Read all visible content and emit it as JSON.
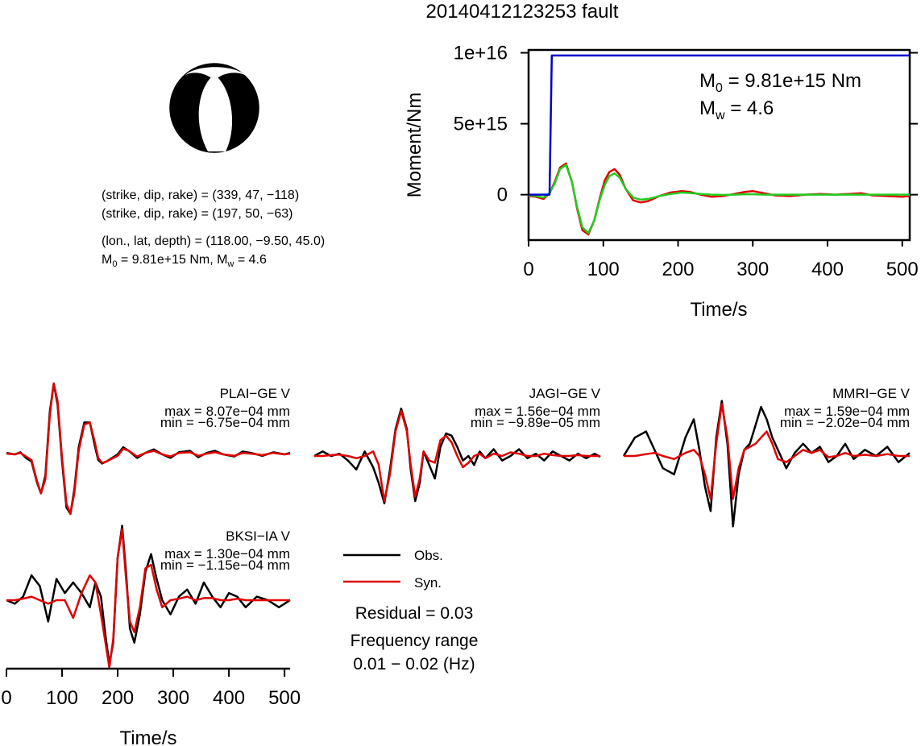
{
  "page_title": "20140412123253 fault",
  "colors": {
    "moment_rate_observed": "#0000cc",
    "moment_rate_red": "#e00000",
    "moment_rate_green": "#22cc22",
    "obs": "#000000",
    "syn": "#e00000",
    "beachball_fill": "#000000"
  },
  "mechanism": {
    "plane1": "(strike, dip, rake) = (339, 47, −118)",
    "plane2": "(strike, dip, rake) = (197, 50, −63)",
    "location": "(lon., lat, depth) = (118.00, −9.50, 45.0)",
    "m0_prefix": "M",
    "m0_sub": "0",
    "m0_value": " = 9.81e+15 Nm, M",
    "mw_sub": "w",
    "mw_value": " = 4.6"
  },
  "legend": {
    "obs_label": "Obs.",
    "syn_label": "Syn.",
    "residual": "Residual = 0.03",
    "freq_label": "Frequency range",
    "freq_value": "0.01 − 0.02 (Hz)"
  },
  "moment_chart": {
    "ylabel": "Moment/Nm",
    "xlabel": "Time/s",
    "m0_annot_prefix": "M",
    "m0_annot_sub": "0",
    "m0_annot_value": " = 9.81e+15 Nm",
    "mw_annot_prefix": "M",
    "mw_annot_sub": "w",
    "mw_annot_value": " = 4.6",
    "ytick_labels": [
      "1e+16",
      "5e+15",
      "0"
    ],
    "xtick_labels": [
      "0",
      "100",
      "200",
      "300",
      "400",
      "500"
    ]
  },
  "waveform_axis": {
    "xlabel": "Time/s",
    "xtick_labels": [
      "0",
      "100",
      "200",
      "300",
      "400",
      "500"
    ]
  },
  "stations": [
    {
      "name": "PLAI−GE V",
      "max": "max = 8.07e−04 mm",
      "min": "min = −6.75e−04 mm"
    },
    {
      "name": "JAGI−GE V",
      "max": "max = 1.56e−04 mm",
      "min": "min = −9.89e−05 mm"
    },
    {
      "name": "MMRI−GE V",
      "max": "max = 1.59e−04 mm",
      "min": "min = −2.02e−04 mm"
    },
    {
      "name": "BKSI−IA V",
      "max": "max = 1.30e−04 mm",
      "min": "min = −1.15e−04 mm"
    }
  ],
  "chart_data": [
    {
      "type": "line",
      "xlabel": "Time/s",
      "ylabel": "Moment/Nm",
      "xlim": [
        0,
        510
      ],
      "ylim": [
        -3200000000000000.0,
        1.02e+16
      ],
      "yticks": [
        0,
        5000000000000000.0,
        1e+16
      ],
      "xticks": [
        0,
        100,
        200,
        300,
        400,
        500
      ],
      "series": [
        {
          "color": "blue",
          "x": [
            0,
            28,
            31,
            33,
            510
          ],
          "y": [
            0,
            0,
            9810000000000000.0,
            9810000000000000.0,
            9810000000000000.0
          ]
        },
        {
          "color": "red",
          "x": [
            0,
            10,
            20,
            28,
            35,
            42,
            50,
            58,
            65,
            72,
            80,
            88,
            95,
            102,
            108,
            115,
            122,
            130,
            140,
            150,
            160,
            175,
            190,
            205,
            215,
            230,
            245,
            260,
            275,
            290,
            300,
            315,
            330,
            350,
            370,
            390,
            410,
            430,
            445,
            460,
            480,
            500,
            510
          ],
          "y": [
            -100000000000000.0,
            -150000000000000.0,
            -300000000000000.0,
            100000000000000.0,
            900000000000000.0,
            1900000000000000.0,
            2200000000000000.0,
            900000000000000.0,
            -1000000000000000.0,
            -2500000000000000.0,
            -2800000000000000.0,
            -1800000000000000.0,
            -300000000000000.0,
            1000000000000000.0,
            1600000000000000.0,
            1800000000000000.0,
            1400000000000000.0,
            400000000000000.0,
            -400000000000000.0,
            -550000000000000.0,
            -450000000000000.0,
            -100000000000000.0,
            150000000000000.0,
            250000000000000.0,
            200000000000000.0,
            0.0,
            -150000000000000.0,
            -100000000000000.0,
            50000000000000.0,
            200000000000000.0,
            250000000000000.0,
            100000000000000.0,
            -50000000000000.0,
            -100000000000000.0,
            0.0,
            50000000000000.0,
            0.0,
            50000000000000.0,
            100000000000000.0,
            -50000000000000.0,
            -100000000000000.0,
            -150000000000000.0,
            -100000000000000.0
          ]
        },
        {
          "color": "green",
          "x": [
            0,
            10,
            20,
            28,
            35,
            42,
            50,
            58,
            65,
            72,
            80,
            88,
            95,
            102,
            108,
            115,
            122,
            130,
            140,
            150,
            160,
            175,
            190,
            205,
            215,
            230,
            245,
            260,
            275,
            290,
            300,
            315,
            330,
            350,
            370,
            390,
            410,
            430,
            445,
            460,
            480,
            500,
            510
          ],
          "y": [
            -50000000000000.0,
            -100000000000000.0,
            -200000000000000.0,
            100000000000000.0,
            800000000000000.0,
            1800000000000000.0,
            2100000000000000.0,
            900000000000000.0,
            -900000000000000.0,
            -2300000000000000.0,
            -2700000000000000.0,
            -1800000000000000.0,
            -400000000000000.0,
            700000000000000.0,
            1300000000000000.0,
            1500000000000000.0,
            1200000000000000.0,
            400000000000000.0,
            -200000000000000.0,
            -350000000000000.0,
            -300000000000000.0,
            -100000000000000.0,
            50000000000000.0,
            150000000000000.0,
            120000000000000.0,
            50000000000000.0,
            0.0,
            -20000000000000.0,
            0.0,
            30000000000000.0,
            30000000000000.0,
            0.0,
            0.0,
            0.0,
            0.0,
            0.0,
            0.0,
            0.0,
            0.0,
            0.0,
            0.0,
            0.0,
            0.0
          ]
        }
      ]
    },
    {
      "type": "line",
      "title": "PLAI−GE V",
      "xlim": [
        0,
        510
      ],
      "ylim": [
        -1,
        1
      ],
      "series": [
        {
          "name": "Obs.",
          "color": "black",
          "x": [
            0,
            15,
            25,
            35,
            45,
            55,
            62,
            70,
            78,
            85,
            92,
            100,
            108,
            115,
            122,
            130,
            140,
            150,
            158,
            165,
            172,
            180,
            190,
            200,
            210,
            220,
            235,
            250,
            265,
            280,
            295,
            310,
            330,
            345,
            360,
            375,
            390,
            410,
            425,
            440,
            460,
            480,
            500,
            510
          ],
          "y": [
            0.02,
            0.0,
            0.03,
            -0.05,
            -0.1,
            -0.4,
            -0.55,
            -0.3,
            0.6,
            1.0,
            0.7,
            -0.1,
            -0.75,
            -0.84,
            -0.5,
            0.1,
            0.45,
            0.45,
            0.15,
            -0.08,
            -0.13,
            -0.1,
            -0.05,
            0.0,
            0.1,
            0.05,
            -0.05,
            0.02,
            0.07,
            0.0,
            -0.05,
            0.03,
            0.05,
            -0.04,
            0.02,
            0.05,
            0.0,
            -0.03,
            0.04,
            0.02,
            -0.02,
            0.03,
            0.0,
            0.02
          ]
        },
        {
          "name": "Syn.",
          "color": "red",
          "x": [
            0,
            15,
            25,
            35,
            45,
            55,
            62,
            70,
            78,
            85,
            92,
            100,
            108,
            115,
            122,
            130,
            140,
            150,
            158,
            165,
            172,
            180,
            190,
            200,
            210,
            220,
            235,
            250,
            265,
            280,
            295,
            310,
            330,
            345,
            360,
            375,
            390,
            410,
            425,
            440,
            460,
            480,
            500,
            510
          ],
          "y": [
            0.01,
            0.0,
            0.02,
            -0.03,
            -0.08,
            -0.38,
            -0.55,
            -0.35,
            0.55,
            1.0,
            0.75,
            -0.05,
            -0.7,
            -0.84,
            -0.55,
            0.05,
            0.42,
            0.45,
            0.2,
            -0.05,
            -0.12,
            -0.1,
            -0.06,
            -0.02,
            0.08,
            0.05,
            -0.03,
            0.02,
            0.05,
            0.0,
            -0.03,
            0.02,
            0.03,
            -0.02,
            0.01,
            0.03,
            0.0,
            -0.02,
            0.02,
            0.01,
            -0.01,
            0.02,
            0.0,
            0.01
          ]
        }
      ]
    },
    {
      "type": "line",
      "title": "JAGI−GE V",
      "xlim": [
        0,
        510
      ],
      "ylim": [
        -1,
        1
      ],
      "series": [
        {
          "name": "Obs.",
          "color": "black",
          "x": [
            0,
            15,
            30,
            45,
            60,
            75,
            90,
            105,
            115,
            125,
            135,
            145,
            155,
            165,
            172,
            180,
            188,
            195,
            205,
            215,
            225,
            235,
            245,
            255,
            265,
            275,
            285,
            295,
            305,
            320,
            335,
            350,
            365,
            380,
            395,
            410,
            425,
            440,
            455,
            470,
            485,
            500,
            510
          ],
          "y": [
            0.0,
            0.1,
            0.0,
            0.05,
            -0.1,
            -0.3,
            0.1,
            -0.25,
            -0.6,
            -1.05,
            -0.3,
            0.6,
            1.05,
            0.6,
            -0.3,
            -1.0,
            -0.6,
            0.1,
            -0.2,
            -0.5,
            0.2,
            0.5,
            0.45,
            0.2,
            -0.1,
            0.0,
            -0.2,
            0.1,
            -0.05,
            0.15,
            -0.1,
            0.0,
            0.15,
            -0.05,
            0.05,
            -0.1,
            0.1,
            0.0,
            -0.1,
            0.05,
            -0.05,
            0.05,
            -0.02
          ]
        },
        {
          "name": "Syn.",
          "color": "red",
          "x": [
            0,
            15,
            30,
            45,
            60,
            75,
            90,
            105,
            115,
            125,
            135,
            145,
            155,
            165,
            172,
            180,
            188,
            195,
            205,
            215,
            225,
            235,
            245,
            255,
            265,
            275,
            285,
            295,
            305,
            320,
            335,
            350,
            365,
            380,
            395,
            410,
            425,
            440,
            455,
            470,
            485,
            500,
            510
          ],
          "y": [
            0.0,
            0.0,
            0.02,
            0.03,
            0.0,
            -0.05,
            0.0,
            0.1,
            -0.2,
            -1.0,
            -0.4,
            0.55,
            1.0,
            0.55,
            -0.2,
            -0.9,
            -0.5,
            0.1,
            -0.1,
            -0.15,
            0.35,
            0.45,
            0.3,
            0.0,
            -0.25,
            -0.15,
            0.0,
            0.05,
            -0.05,
            0.05,
            0.0,
            0.08,
            0.05,
            0.0,
            0.0,
            0.05,
            0.02,
            0.0,
            0.0,
            0.02,
            0.0,
            0.0,
            0.0
          ]
        }
      ]
    },
    {
      "type": "line",
      "title": "MMRI−GE V",
      "xlim": [
        0,
        510
      ],
      "ylim": [
        -1,
        1
      ],
      "series": [
        {
          "name": "Obs.",
          "color": "black",
          "x": [
            0,
            20,
            40,
            55,
            70,
            90,
            110,
            125,
            135,
            145,
            155,
            165,
            175,
            185,
            195,
            205,
            215,
            225,
            235,
            245,
            255,
            265,
            275,
            290,
            305,
            320,
            335,
            350,
            365,
            380,
            395,
            410,
            430,
            450,
            470,
            490,
            510
          ],
          "y": [
            0.0,
            0.3,
            0.4,
            0.1,
            -0.2,
            -0.3,
            0.3,
            0.6,
            0.1,
            -0.5,
            -0.9,
            0.3,
            0.9,
            0.2,
            -1.15,
            -0.3,
            0.1,
            0.2,
            0.5,
            0.8,
            0.6,
            0.3,
            0.1,
            -0.2,
            0.05,
            0.2,
            0.05,
            0.15,
            -0.1,
            0.0,
            0.2,
            -0.05,
            0.1,
            0.0,
            0.15,
            -0.1,
            0.05
          ]
        },
        {
          "name": "Syn.",
          "color": "red",
          "x": [
            0,
            20,
            40,
            55,
            70,
            90,
            110,
            125,
            135,
            145,
            155,
            165,
            175,
            185,
            195,
            205,
            215,
            225,
            235,
            245,
            255,
            265,
            275,
            290,
            305,
            320,
            335,
            350,
            365,
            380,
            395,
            410,
            430,
            450,
            470,
            490,
            510
          ],
          "y": [
            0.0,
            0.0,
            0.03,
            0.05,
            0.0,
            -0.05,
            0.05,
            0.1,
            0.0,
            -0.3,
            -0.7,
            0.2,
            0.85,
            0.3,
            -0.7,
            -0.2,
            0.1,
            0.15,
            0.2,
            0.3,
            0.4,
            0.2,
            -0.05,
            -0.1,
            0.0,
            0.1,
            0.05,
            0.1,
            -0.02,
            0.0,
            0.05,
            0.0,
            0.02,
            0.0,
            0.03,
            0.0,
            0.0
          ]
        }
      ]
    },
    {
      "type": "line",
      "title": "BKSI−IA V",
      "xlim": [
        0,
        510
      ],
      "ylim": [
        -1,
        1
      ],
      "series": [
        {
          "name": "Obs.",
          "color": "black",
          "x": [
            0,
            15,
            30,
            45,
            60,
            75,
            90,
            105,
            120,
            135,
            150,
            160,
            170,
            178,
            185,
            192,
            200,
            208,
            215,
            222,
            230,
            240,
            250,
            260,
            270,
            280,
            295,
            310,
            325,
            340,
            355,
            370,
            385,
            400,
            415,
            430,
            450,
            470,
            490,
            510
          ],
          "y": [
            0.0,
            -0.05,
            0.05,
            0.35,
            0.2,
            -0.3,
            0.3,
            0.1,
            0.25,
            0.1,
            -0.1,
            0.25,
            0.05,
            -0.5,
            -0.9,
            -0.6,
            0.6,
            1.05,
            0.4,
            -0.4,
            -0.6,
            -0.2,
            0.4,
            0.65,
            0.3,
            0.0,
            -0.2,
            0.05,
            0.15,
            -0.05,
            0.25,
            0.05,
            -0.1,
            0.1,
            0.05,
            -0.1,
            0.05,
            0.0,
            -0.1,
            0.0
          ]
        },
        {
          "name": "Syn.",
          "color": "red",
          "x": [
            0,
            15,
            30,
            45,
            60,
            75,
            90,
            105,
            120,
            135,
            150,
            160,
            170,
            178,
            185,
            192,
            200,
            208,
            215,
            222,
            230,
            240,
            250,
            260,
            270,
            280,
            295,
            310,
            325,
            340,
            355,
            370,
            385,
            400,
            415,
            430,
            450,
            470,
            490,
            510
          ],
          "y": [
            0.0,
            0.0,
            0.02,
            0.05,
            0.0,
            -0.05,
            0.0,
            0.0,
            -0.25,
            0.1,
            0.35,
            0.25,
            -0.2,
            -0.6,
            -0.95,
            -0.55,
            0.6,
            1.0,
            0.3,
            -0.3,
            -0.45,
            -0.1,
            0.45,
            0.5,
            0.15,
            -0.1,
            0.0,
            0.02,
            0.05,
            0.0,
            0.03,
            0.03,
            0.0,
            0.0,
            0.02,
            0.0,
            0.0,
            0.0,
            0.0,
            0.0
          ]
        }
      ]
    }
  ]
}
